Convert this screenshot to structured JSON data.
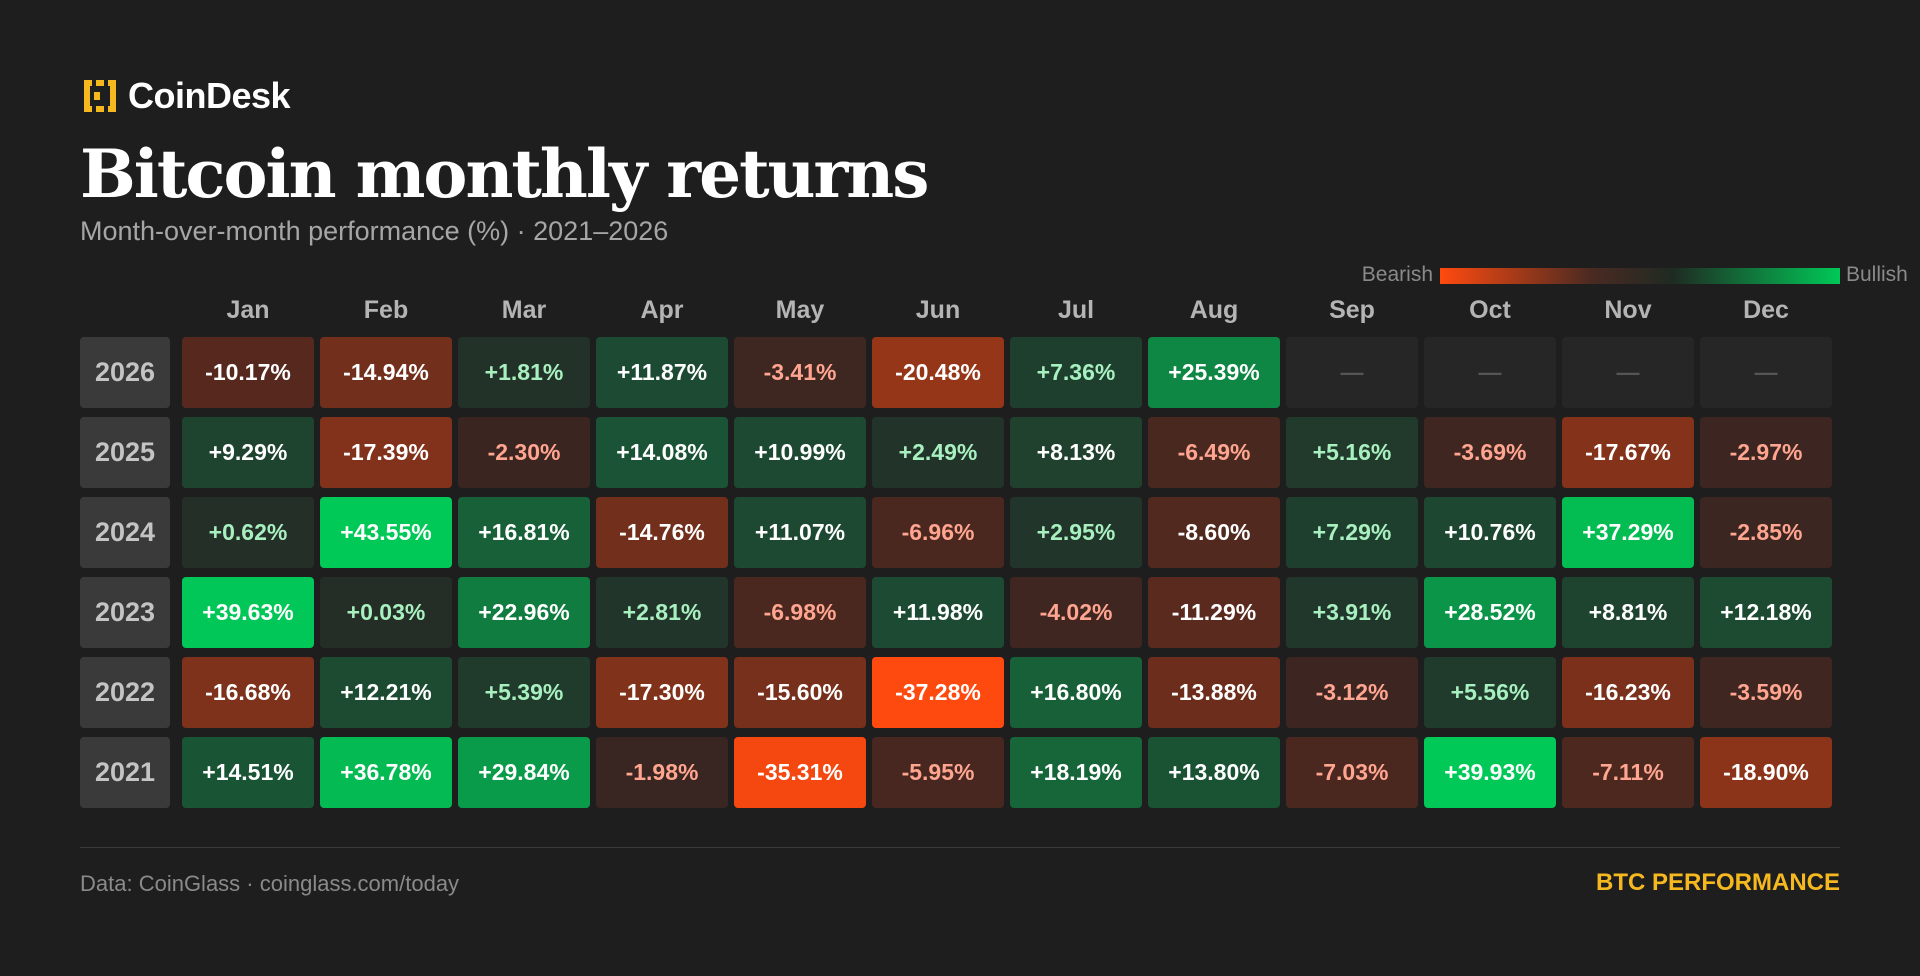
{
  "brand": {
    "name": "CoinDesk"
  },
  "colors": {
    "background": "#1e1e1e",
    "brand_yellow": "#f5b81f",
    "bearish_strong": "#ff4a0f",
    "bullish_strong": "#00c957",
    "empty_cell": "#262626"
  },
  "chart_data": {
    "type": "heatmap",
    "title": "Bitcoin monthly returns",
    "subtitle": "Month-over-month performance (%) · 2021–2026",
    "legend": {
      "low_label": "Bearish",
      "high_label": "Bullish",
      "placement": "top-right"
    },
    "months": [
      "Jan",
      "Feb",
      "Mar",
      "Apr",
      "May",
      "Jun",
      "Jul",
      "Aug",
      "Sep",
      "Oct",
      "Nov",
      "Dec"
    ],
    "empty_label": "—",
    "rows": [
      {
        "year": "2026",
        "labels": [
          "-10.17%",
          "-14.94%",
          "+1.81%",
          "+11.87%",
          "-3.41%",
          "-20.48%",
          "+7.36%",
          "+25.39%",
          null,
          null,
          null,
          null
        ],
        "values": [
          -10.17,
          -14.94,
          1.81,
          11.87,
          -3.41,
          -20.48,
          7.36,
          25.39,
          null,
          null,
          null,
          null
        ]
      },
      {
        "year": "2025",
        "labels": [
          "+9.29%",
          "-17.39%",
          "-2.30%",
          "+14.08%",
          "+10.99%",
          "+2.49%",
          "+8.13%",
          "-6.49%",
          "+5.16%",
          "-3.69%",
          "-17.67%",
          "-2.97%"
        ],
        "values": [
          9.29,
          -17.39,
          -2.3,
          14.08,
          10.99,
          2.49,
          8.13,
          -6.49,
          5.16,
          -3.69,
          -17.67,
          -2.97
        ]
      },
      {
        "year": "2024",
        "labels": [
          "+0.62%",
          "+43.55%",
          "+16.81%",
          "-14.76%",
          "+11.07%",
          "-6.96%",
          "+2.95%",
          "-8.60%",
          "+7.29%",
          "+10.76%",
          "+37.29%",
          "-2.85%"
        ],
        "values": [
          0.62,
          43.55,
          16.81,
          -14.76,
          11.07,
          -6.96,
          2.95,
          -8.6,
          7.29,
          10.76,
          37.29,
          -2.85
        ]
      },
      {
        "year": "2023",
        "labels": [
          "+39.63%",
          "+0.03%",
          "+22.96%",
          "+2.81%",
          "-6.98%",
          "+11.98%",
          "-4.02%",
          "-11.29%",
          "+3.91%",
          "+28.52%",
          "+8.81%",
          "+12.18%"
        ],
        "values": [
          39.63,
          0.03,
          22.96,
          2.81,
          -6.98,
          11.98,
          -4.02,
          -11.29,
          3.91,
          28.52,
          8.81,
          12.18
        ]
      },
      {
        "year": "2022",
        "labels": [
          "-16.68%",
          "+12.21%",
          "+5.39%",
          "-17.30%",
          "-15.60%",
          "-37.28%",
          "+16.80%",
          "-13.88%",
          "-3.12%",
          "+5.56%",
          "-16.23%",
          "-3.59%"
        ],
        "values": [
          -16.68,
          12.21,
          5.39,
          -17.3,
          -15.6,
          -37.28,
          16.8,
          -13.88,
          -3.12,
          5.56,
          -16.23,
          -3.59
        ]
      },
      {
        "year": "2021",
        "labels": [
          "+14.51%",
          "+36.78%",
          "+29.84%",
          "-1.98%",
          "-35.31%",
          "-5.95%",
          "+18.19%",
          "+13.80%",
          "-7.03%",
          "+39.93%",
          "-7.11%",
          "-18.90%"
        ],
        "values": [
          14.51,
          36.78,
          29.84,
          -1.98,
          -35.31,
          -5.95,
          18.19,
          13.8,
          -7.03,
          39.93,
          -7.11,
          -18.9
        ]
      }
    ]
  },
  "footer": {
    "source": "Data: CoinGlass · coinglass.com/today",
    "tag": "BTC PERFORMANCE"
  }
}
